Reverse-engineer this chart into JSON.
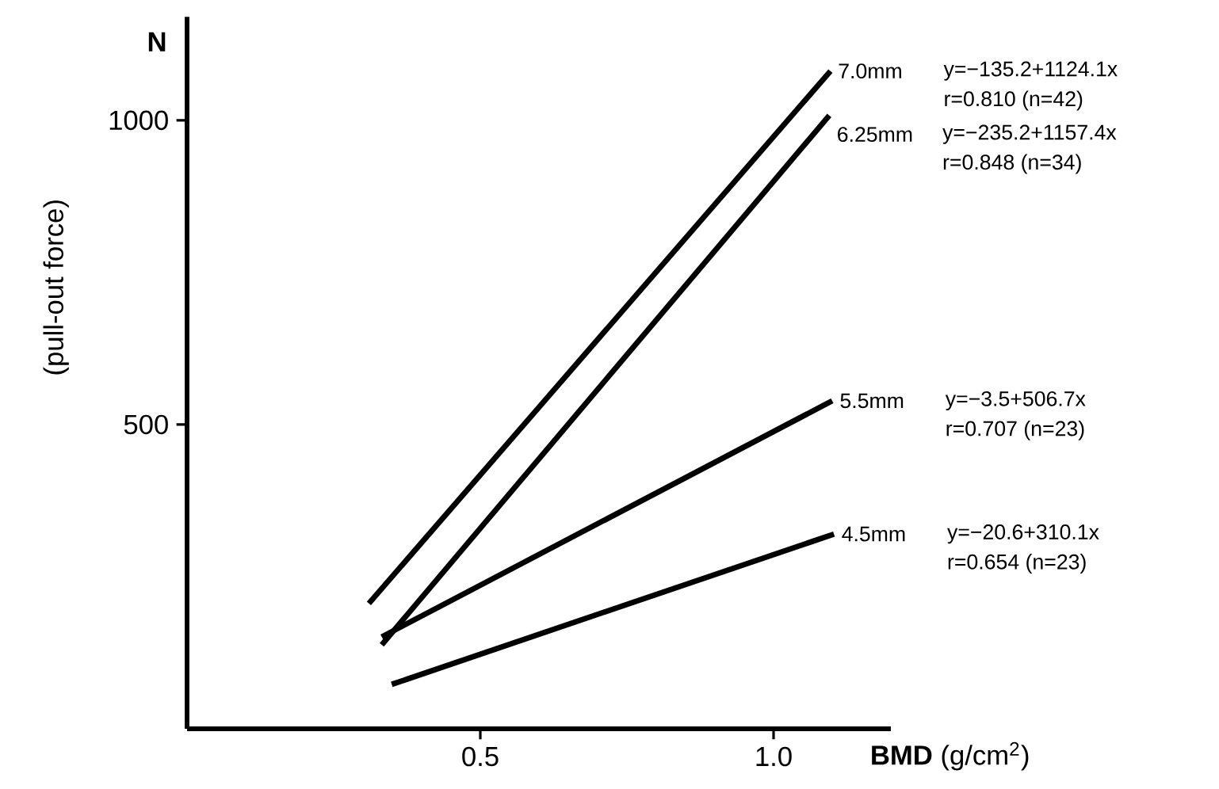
{
  "chart_data": {
    "type": "line",
    "xlabel": "**BMD** (g/cm$^{2}$)",
    "ylabel": "(pull-out force)",
    "xlim": [
      0,
      1.2
    ],
    "ylim": [
      0,
      1170
    ],
    "xticks": [
      {
        "value": 0.5,
        "label": "0.5"
      },
      {
        "value": 1.0,
        "label": "1.0"
      }
    ],
    "yticks": [
      {
        "value": 500,
        "label": "500"
      },
      {
        "value": 1000,
        "label": "1000"
      }
    ],
    "grid": false,
    "marker": "none",
    "line_style": "solid",
    "series": [
      {
        "name": "7.0mm",
        "color": "#000000",
        "x": [
          0.31,
          1.097
        ],
        "values": [
          206,
          1081
        ]
      },
      {
        "name": "6.25mm",
        "color": "#000000",
        "x": [
          0.332,
          1.095
        ],
        "values": [
          138,
          1008
        ]
      },
      {
        "name": "5.5mm",
        "color": "#000000",
        "x": [
          0.332,
          1.1
        ],
        "values": [
          151,
          539
        ]
      },
      {
        "name": "4.5mm",
        "color": "#000000",
        "x": [
          0.349,
          1.103
        ],
        "values": [
          73,
          320
        ]
      }
    ],
    "annotations": [
      "N",
      "y=−135.2+1124.1x",
      "r=0.810 (n=42)",
      "y=−235.2+1157.4x",
      "r=0.848 (n=34)",
      "y=−3.5+506.7x",
      "r=0.707 (n=23)",
      "y=−20.6+310.1x",
      "r=0.654 (n=23)"
    ]
  }
}
